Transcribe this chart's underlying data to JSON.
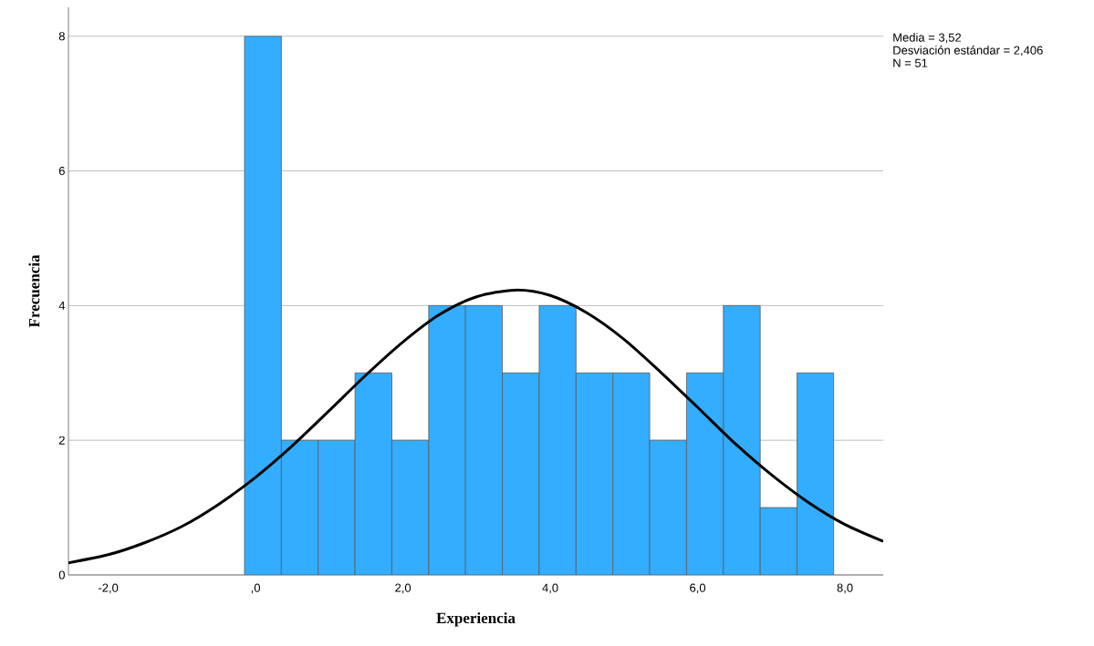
{
  "chart_data": {
    "type": "histogram",
    "xlabel": "Experiencia",
    "ylabel": "Frecuencia",
    "bins": [
      -0.15,
      0.35,
      0.85,
      1.35,
      1.85,
      2.35,
      2.85,
      3.35,
      3.85,
      4.35,
      4.85,
      5.35,
      5.85,
      6.35,
      6.85,
      7.35,
      7.85
    ],
    "values": [
      8,
      2,
      2,
      3,
      2,
      4,
      4,
      3,
      4,
      3,
      3,
      2,
      3,
      4,
      1,
      3
    ],
    "color": "#33adff",
    "series": [
      {
        "type": "line",
        "color": "#000000",
        "x": [
          -2.54,
          -2.0,
          -1.5,
          -1.0,
          -0.5,
          0.0,
          0.5,
          1.0,
          1.5,
          2.0,
          2.5,
          3.0,
          3.52,
          4.0,
          4.5,
          5.0,
          5.5,
          6.0,
          6.5,
          7.0,
          7.5,
          8.0,
          8.52
        ],
        "values": [
          0.18,
          0.3,
          0.48,
          0.72,
          1.05,
          1.45,
          1.92,
          2.44,
          2.97,
          3.46,
          3.87,
          4.13,
          4.23,
          4.15,
          3.89,
          3.5,
          3.01,
          2.49,
          1.96,
          1.49,
          1.08,
          0.75,
          0.5
        ]
      }
    ],
    "xlim": [
      -2.54,
      8.52
    ],
    "ylim": [
      0,
      8.43
    ],
    "xticks": [
      {
        "value": -2,
        "label": "-2,0"
      },
      {
        "value": 0,
        "label": ",0"
      },
      {
        "value": 2,
        "label": "2,0"
      },
      {
        "value": 4,
        "label": "4,0"
      },
      {
        "value": 6,
        "label": "6,0"
      },
      {
        "value": 8,
        "label": "8,0"
      }
    ],
    "yticks": [
      0,
      2,
      4,
      6,
      8
    ],
    "grid": "y",
    "annotations": [
      "Media = 3,52",
      "Desviación estándar = 2,406",
      "N = 51"
    ]
  }
}
